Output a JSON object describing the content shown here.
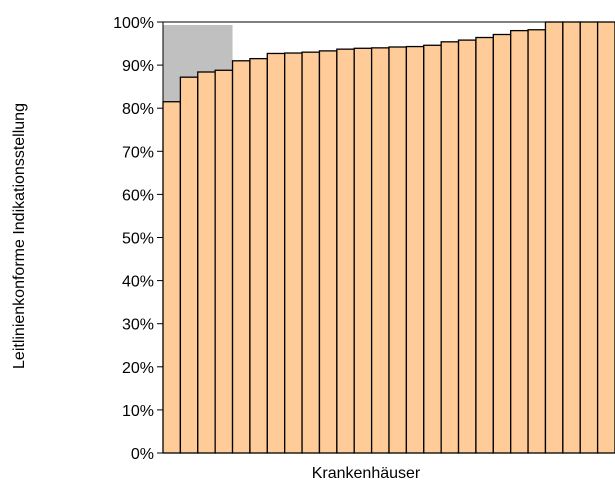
{
  "chart_data": {
    "type": "bar",
    "title": "",
    "xlabel": "Krankenhäuser",
    "ylabel": "Leitlinienkonforme Indikationsstellung",
    "ylim": [
      0,
      100
    ],
    "y_ticks": [
      "0%",
      "10%",
      "20%",
      "30%",
      "40%",
      "50%",
      "60%",
      "70%",
      "80%",
      "90%",
      "100%"
    ],
    "grid": false,
    "values": [
      81.5,
      87.2,
      88.4,
      88.8,
      91.0,
      91.5,
      92.7,
      92.8,
      93.0,
      93.3,
      93.7,
      93.9,
      94.0,
      94.2,
      94.3,
      94.6,
      95.4,
      95.8,
      96.4,
      97.1,
      98.0,
      98.2,
      100,
      100,
      100,
      100
    ],
    "bar_color": "#FFCC99",
    "bar_edge_color": "#000000",
    "reference_area": {
      "from_bar": 1,
      "to_bar": 4,
      "y_from": 81.5,
      "y_to": 99.3,
      "color": "#C0C0C0"
    }
  }
}
